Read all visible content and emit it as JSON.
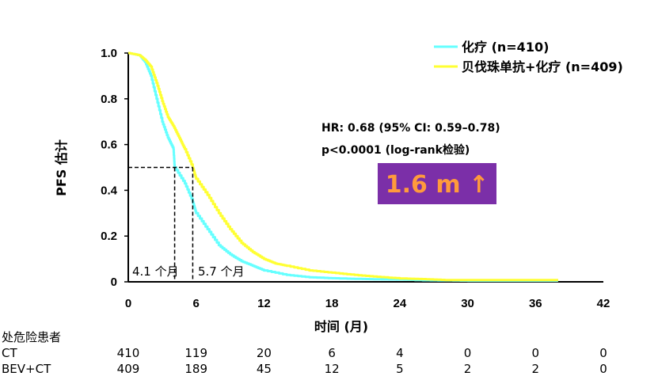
{
  "chart_data": {
    "type": "line",
    "ylabel": "PFS 估计",
    "xlabel": "时间 (月)",
    "xlim": [
      0,
      42
    ],
    "ylim": [
      0,
      1
    ],
    "x_ticks": [
      "0",
      "6",
      "12",
      "18",
      "24",
      "30",
      "36",
      "42"
    ],
    "y_ticks": [
      "0",
      "0.2",
      "0.4",
      "0.6",
      "0.8",
      "1.0"
    ],
    "legend_position": "top-right",
    "series": [
      {
        "name": "化疗 (n=410)",
        "color": "#66ffff",
        "points": [
          [
            0,
            1.0
          ],
          [
            1,
            0.99
          ],
          [
            1.5,
            0.96
          ],
          [
            2,
            0.9
          ],
          [
            2.5,
            0.8
          ],
          [
            3,
            0.7
          ],
          [
            3.5,
            0.63
          ],
          [
            4,
            0.58
          ],
          [
            4.1,
            0.5
          ],
          [
            5,
            0.43
          ],
          [
            5.7,
            0.35
          ],
          [
            6,
            0.3
          ],
          [
            7,
            0.23
          ],
          [
            8,
            0.16
          ],
          [
            9,
            0.12
          ],
          [
            10,
            0.09
          ],
          [
            11,
            0.07
          ],
          [
            12,
            0.05
          ],
          [
            14,
            0.03
          ],
          [
            16,
            0.02
          ],
          [
            18,
            0.016
          ],
          [
            20,
            0.013
          ],
          [
            22,
            0.011
          ],
          [
            24,
            0.01
          ],
          [
            26,
            0.007
          ],
          [
            30,
            0.005
          ],
          [
            36,
            0.005
          ],
          [
            38,
            0.005
          ]
        ]
      },
      {
        "name": "贝伐珠单抗+化疗 (n=409)",
        "color": "#ffff33",
        "points": [
          [
            0,
            1.0
          ],
          [
            1,
            0.99
          ],
          [
            1.5,
            0.97
          ],
          [
            2,
            0.94
          ],
          [
            2.5,
            0.87
          ],
          [
            3,
            0.79
          ],
          [
            3.5,
            0.72
          ],
          [
            4,
            0.68
          ],
          [
            4.5,
            0.63
          ],
          [
            5,
            0.58
          ],
          [
            5.7,
            0.5
          ],
          [
            6,
            0.45
          ],
          [
            7,
            0.38
          ],
          [
            8,
            0.3
          ],
          [
            9,
            0.23
          ],
          [
            10,
            0.17
          ],
          [
            11,
            0.13
          ],
          [
            12,
            0.1
          ],
          [
            13,
            0.08
          ],
          [
            14,
            0.07
          ],
          [
            16,
            0.05
          ],
          [
            18,
            0.04
          ],
          [
            20,
            0.03
          ],
          [
            22,
            0.022
          ],
          [
            24,
            0.015
          ],
          [
            26,
            0.012
          ],
          [
            28,
            0.008
          ],
          [
            30,
            0.008
          ],
          [
            36,
            0.008
          ],
          [
            38,
            0.008
          ]
        ]
      }
    ],
    "medians": [
      {
        "x": 4.1,
        "y": 0.5,
        "label": "4.1 个月"
      },
      {
        "x": 5.7,
        "y": 0.5,
        "label": "5.7 个月"
      }
    ],
    "annotations": {
      "hr": "HR: 0.68 (95% CI: 0.59–0.78)",
      "p": "p<0.0001 (log-rank检验)",
      "badge": "1.6 m ↑",
      "badge_color": "#7b2fa8"
    },
    "risk_table": {
      "title": "处危险患者",
      "rows": [
        {
          "label": "CT",
          "values": [
            "410",
            "119",
            "20",
            "6",
            "4",
            "0",
            "0",
            "0"
          ]
        },
        {
          "label": "BEV+CT",
          "values": [
            "409",
            "189",
            "45",
            "12",
            "5",
            "2",
            "2",
            "0"
          ]
        }
      ]
    }
  }
}
